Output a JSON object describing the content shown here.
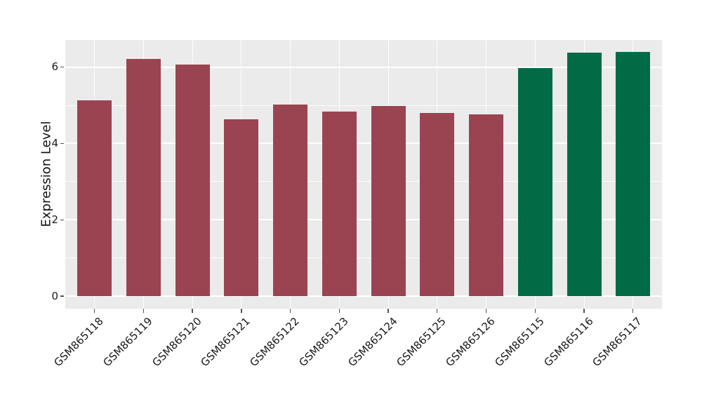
{
  "chart_data": {
    "type": "bar",
    "title": "",
    "xlabel": "",
    "ylabel": "Expression Level",
    "categories": [
      "GSM865118",
      "GSM865119",
      "GSM865120",
      "GSM865121",
      "GSM865122",
      "GSM865123",
      "GSM865124",
      "GSM865125",
      "GSM865126",
      "GSM865115",
      "GSM865116",
      "GSM865117"
    ],
    "values": [
      5.13,
      6.21,
      6.07,
      4.64,
      5.01,
      4.83,
      4.98,
      4.8,
      4.77,
      5.97,
      6.38,
      6.4
    ],
    "bar_colors": [
      "#9B4451",
      "#9B4451",
      "#9B4451",
      "#9B4451",
      "#9B4451",
      "#9B4451",
      "#9B4451",
      "#9B4451",
      "#9B4451",
      "#016B46",
      "#016B46",
      "#016B46"
    ],
    "group_colors": {
      "red_group": "#9B4451",
      "green_group": "#016B46"
    },
    "yticks": [
      0,
      2,
      4,
      6
    ],
    "yticks_minor": [
      1,
      3,
      5
    ],
    "ylim": [
      -0.33,
      6.71
    ],
    "grid": "on",
    "legend": "none",
    "panel_bg": "#EBEBEB",
    "grid_color": "#FFFFFF",
    "x_tick_rotation_deg": 45
  }
}
